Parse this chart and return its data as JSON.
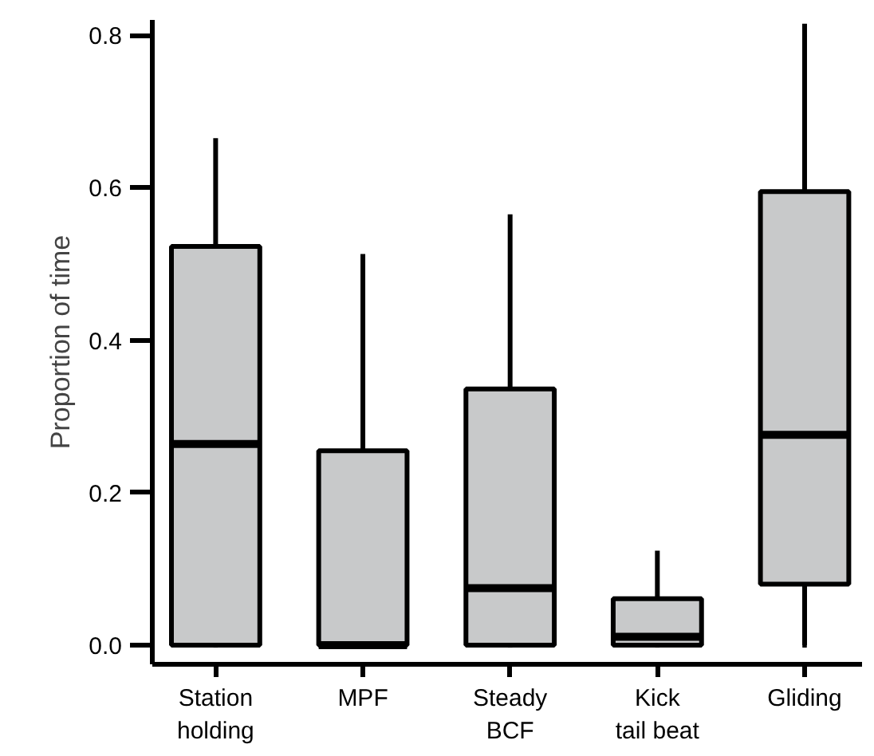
{
  "chart_data": {
    "type": "box",
    "ylabel": "Proportion of time",
    "categories": [
      "Station holding",
      "MPF",
      "Steady BCF",
      "Kick tail beat",
      "Gliding"
    ],
    "color": "#c8c9ca",
    "boxes": [
      {
        "low": 0,
        "q1": 0,
        "median": 0.264,
        "q3": 0.523,
        "high": 0.665
      },
      {
        "low": 0,
        "q1": 0,
        "median": 0,
        "q3": 0.255,
        "high": 0.513
      },
      {
        "low": 0,
        "q1": 0,
        "median": 0.075,
        "q3": 0.336,
        "high": 0.565
      },
      {
        "low": 0,
        "q1": 0,
        "median": 0.011,
        "q3": 0.061,
        "high": 0.124
      },
      {
        "low": 0,
        "q1": 0.08,
        "median": 0.276,
        "q3": 0.595,
        "high": 0.815
      }
    ],
    "ylim": [
      -0.025,
      0.82
    ],
    "yticks": [
      {
        "value": 0,
        "label": "0.0"
      },
      0.2,
      0.4,
      0.6,
      0.8
    ],
    "grid": false
  }
}
